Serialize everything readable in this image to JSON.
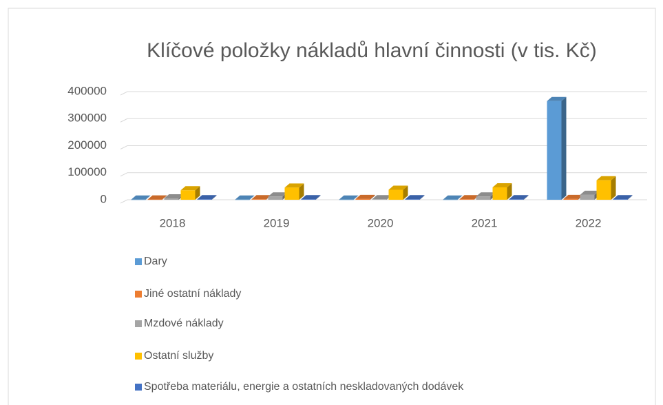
{
  "chart_data": {
    "type": "bar3d",
    "title": "Klíčové položky nákladů hlavní činnosti (v tis. Kč)",
    "categories": [
      "2018",
      "2019",
      "2020",
      "2021",
      "2022"
    ],
    "series": [
      {
        "name": "Dary",
        "color": "#5b9bd5",
        "values": [
          500,
          500,
          500,
          500,
          365000
        ]
      },
      {
        "name": "Jiné ostatní náklady",
        "color": "#ed7d31",
        "values": [
          1000,
          2000,
          3000,
          2000,
          3000
        ]
      },
      {
        "name": "Mzdové náklady",
        "color": "#a5a5a5",
        "values": [
          5000,
          12000,
          2000,
          12000,
          18000
        ]
      },
      {
        "name": "Ostatní služby",
        "color": "#ffc000",
        "values": [
          35000,
          45000,
          37000,
          46000,
          72000
        ]
      },
      {
        "name": "Spotřeba materiálu, energie a ostatních neskladovaných dodávek",
        "color": "#4472c4",
        "values": [
          2000,
          2000,
          2000,
          2000,
          2000
        ]
      }
    ],
    "ylim": [
      0,
      400000
    ],
    "yticks": [
      0,
      100000,
      200000,
      300000,
      400000
    ],
    "grid": true,
    "legend": "bottom"
  }
}
